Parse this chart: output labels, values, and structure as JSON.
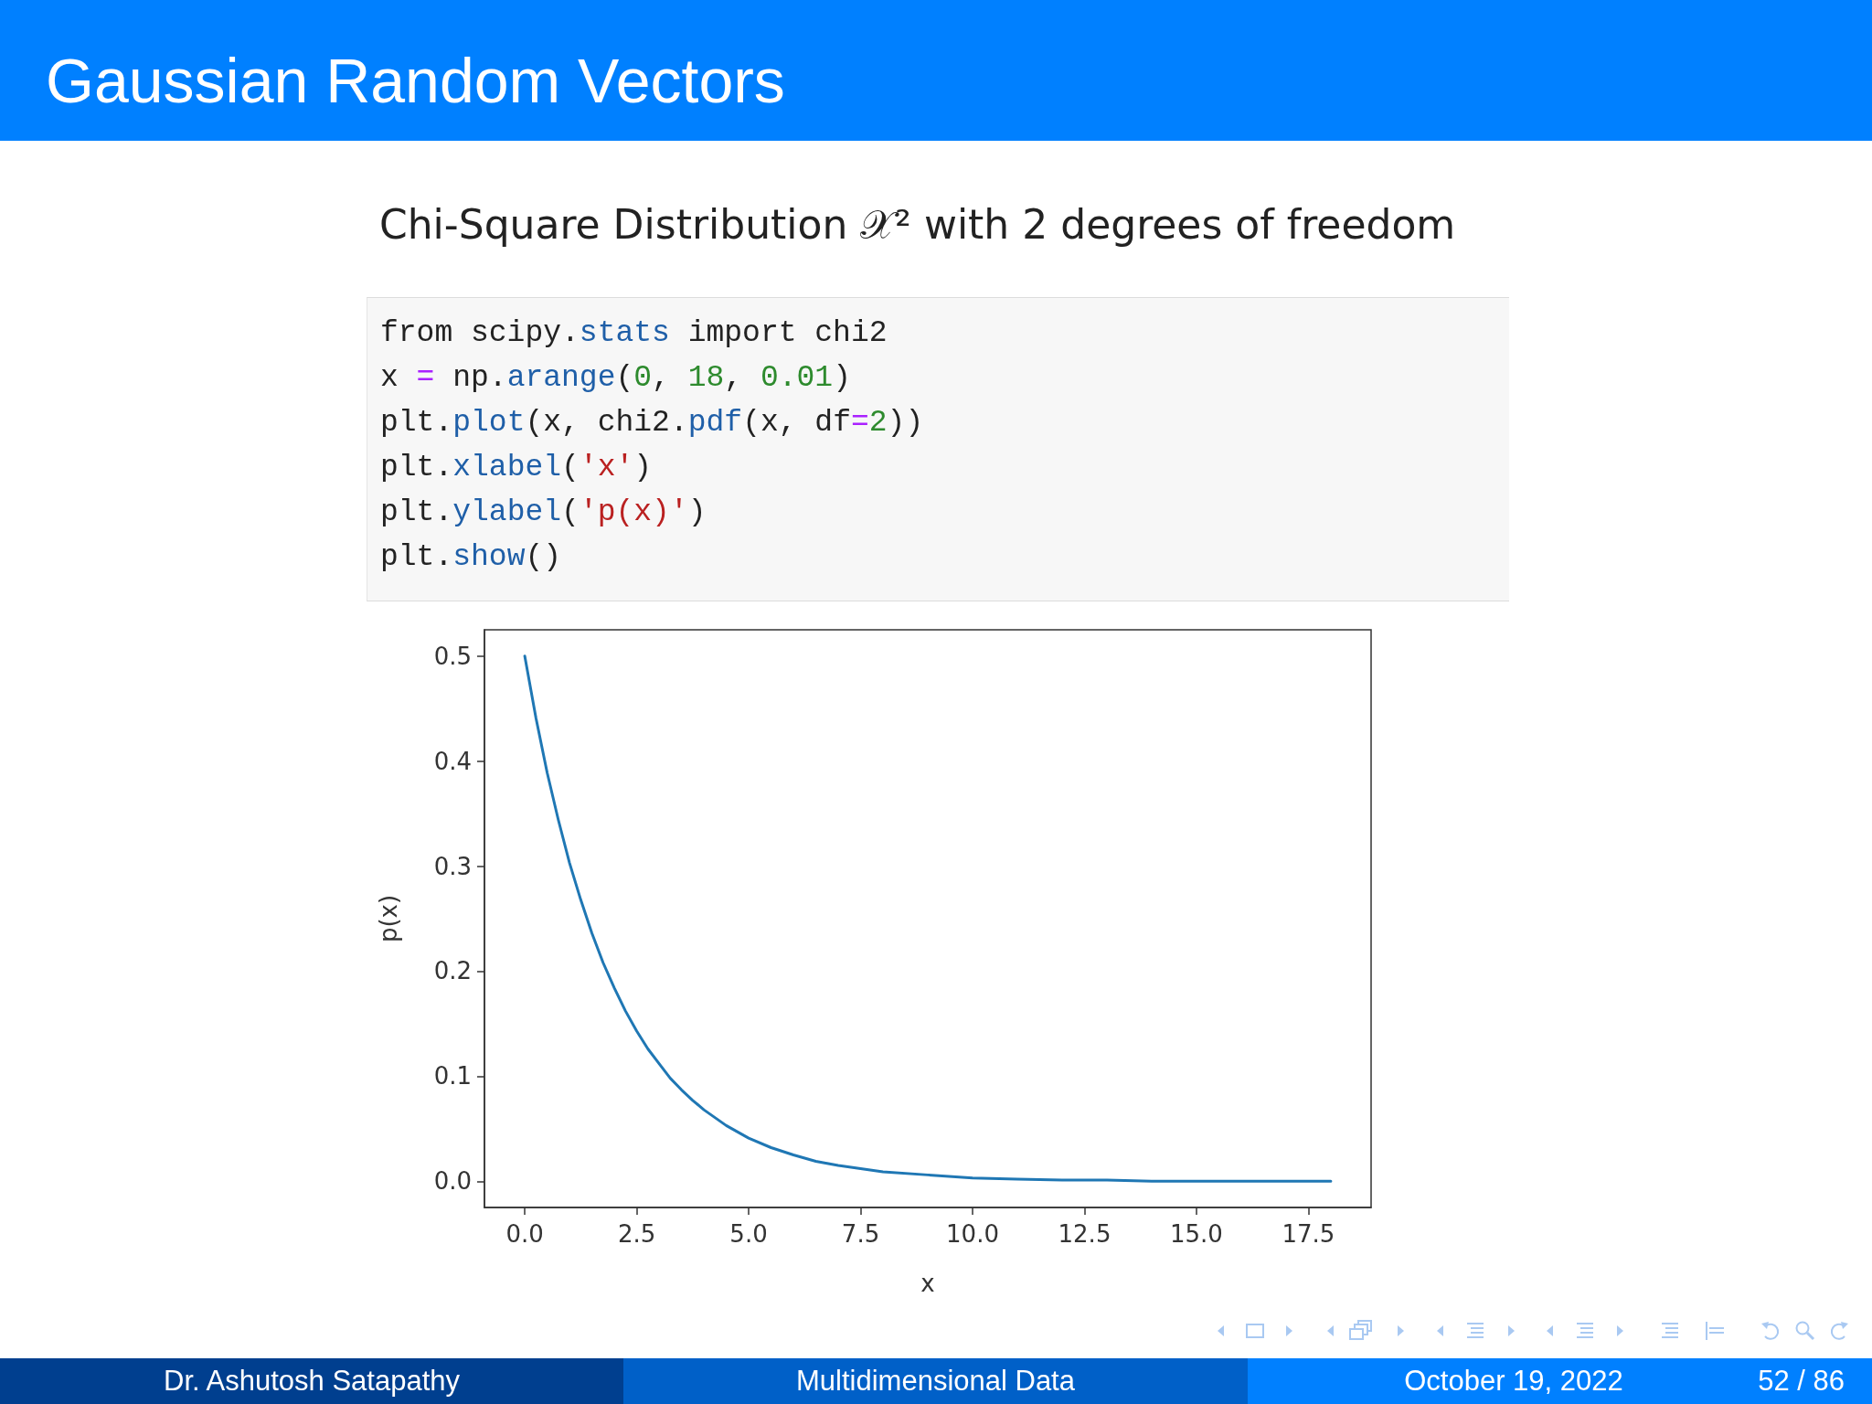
{
  "chart_data": {
    "type": "line",
    "title": "Gaussian Random Vectors",
    "subtitle": "Chi-Square Distribution 𝒳² with 2 degrees of freedom",
    "xlabel": "x",
    "ylabel": "p(x)",
    "x": [
      0,
      0.25,
      0.5,
      0.75,
      1,
      1.25,
      1.5,
      1.75,
      2,
      2.25,
      2.5,
      2.75,
      3,
      3.25,
      3.5,
      3.75,
      4,
      4.5,
      5,
      5.5,
      6,
      6.5,
      7,
      7.5,
      8,
      9,
      10,
      11,
      12,
      13,
      14,
      15,
      16,
      17,
      18
    ],
    "values": [
      0.5,
      0.441,
      0.389,
      0.344,
      0.303,
      0.268,
      0.236,
      0.208,
      0.184,
      0.162,
      0.143,
      0.126,
      0.112,
      0.098,
      0.087,
      0.077,
      0.068,
      0.053,
      0.041,
      0.032,
      0.025,
      0.019,
      0.015,
      0.012,
      0.009,
      0.006,
      0.003,
      0.002,
      0.001,
      0.001,
      0,
      0,
      0,
      0,
      0
    ],
    "color": "#1f77b4",
    "marker": "none",
    "line_style": "solid",
    "xlim": [
      -0.9,
      18.9
    ],
    "ylim": [
      -0.025,
      0.525
    ],
    "xticks": [
      {
        "value": 0,
        "label": "0.0"
      },
      2.5,
      {
        "value": 5,
        "label": "5.0"
      },
      7.5,
      {
        "value": 10,
        "label": "10.0"
      },
      12.5,
      {
        "value": 15,
        "label": "15.0"
      },
      17.5
    ],
    "yticks": [
      {
        "value": 0,
        "label": "0.0"
      },
      0.1,
      0.2,
      0.3,
      0.4,
      0.5
    ],
    "annotations": [
      "from scipy.stats import chi2\nx = np.arange(0, 18, 0.01)\nplt.plot(x, chi2.pdf(x, df=2))\nplt.xlabel('x')\nplt.ylabel('p(x)')\nplt.show()",
      "Dr. Ashutosh Satapathy",
      "Multidimensional Data",
      "October 19, 2022",
      "52 / 86"
    ]
  }
}
